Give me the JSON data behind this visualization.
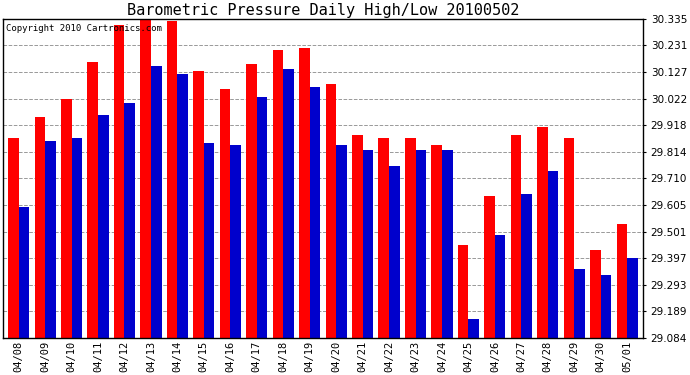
{
  "title": "Barometric Pressure Daily High/Low 20100502",
  "copyright": "Copyright 2010 Cartronics.com",
  "dates": [
    "04/08",
    "04/09",
    "04/10",
    "04/11",
    "04/12",
    "04/13",
    "04/14",
    "04/15",
    "04/16",
    "04/17",
    "04/18",
    "04/19",
    "04/20",
    "04/21",
    "04/22",
    "04/23",
    "04/24",
    "04/25",
    "04/26",
    "04/27",
    "04/28",
    "04/29",
    "04/30",
    "05/01"
  ],
  "highs": [
    29.87,
    29.95,
    30.02,
    30.165,
    30.31,
    30.33,
    30.325,
    30.13,
    30.06,
    30.16,
    30.215,
    30.22,
    30.08,
    29.88,
    29.87,
    29.87,
    29.84,
    29.45,
    29.64,
    29.88,
    29.91,
    29.87,
    29.43,
    29.53
  ],
  "lows": [
    29.6,
    29.855,
    29.87,
    29.96,
    30.005,
    30.15,
    30.12,
    29.85,
    29.84,
    30.03,
    30.14,
    30.07,
    29.84,
    29.82,
    29.76,
    29.82,
    29.82,
    29.16,
    29.49,
    29.65,
    29.74,
    29.355,
    29.33,
    29.4
  ],
  "high_color": "#ff0000",
  "low_color": "#0000cc",
  "bg_color": "#ffffff",
  "grid_color": "#999999",
  "yticks": [
    29.084,
    29.189,
    29.293,
    29.397,
    29.501,
    29.605,
    29.71,
    29.814,
    29.918,
    30.022,
    30.127,
    30.231,
    30.335
  ],
  "ymin": 29.084,
  "ymax": 30.335,
  "bar_width": 0.4,
  "title_fontsize": 11,
  "tick_fontsize": 7.5,
  "copyright_fontsize": 6.5,
  "fig_width": 6.9,
  "fig_height": 3.75
}
